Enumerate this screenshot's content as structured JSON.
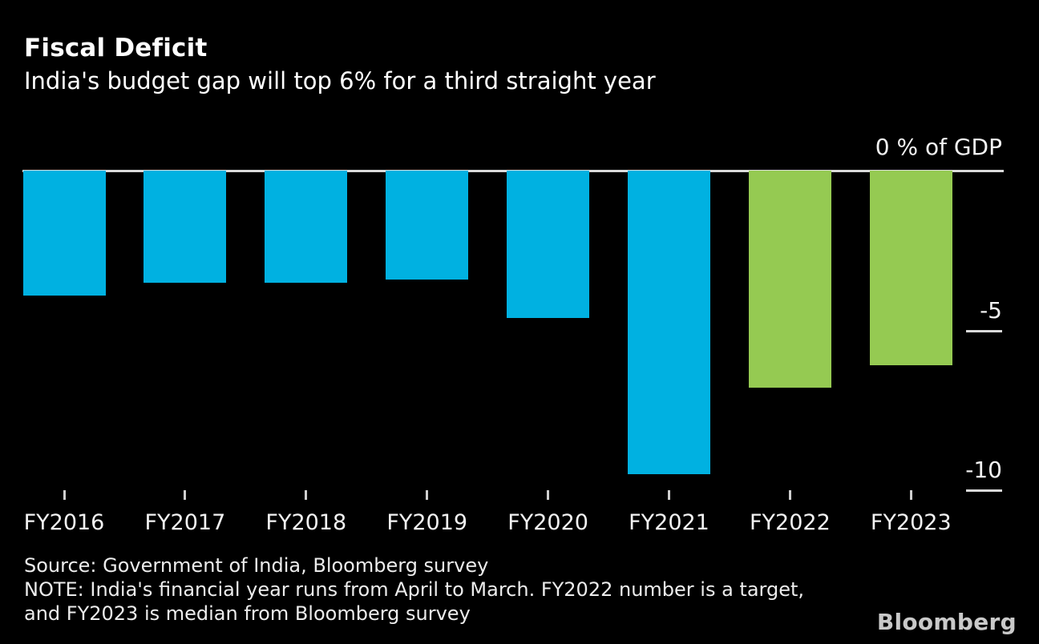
{
  "header": {
    "title": "Fiscal Deficit",
    "subtitle": "India's budget gap will top 6% for a third straight year"
  },
  "chart_data": {
    "type": "bar",
    "title": "Fiscal Deficit",
    "subtitle": "India's budget gap will top 6% for a third straight year",
    "categories": [
      "FY2016",
      "FY2017",
      "FY2018",
      "FY2019",
      "FY2020",
      "FY2021",
      "FY2022",
      "FY2023"
    ],
    "values": [
      -3.9,
      -3.5,
      -3.5,
      -3.4,
      -4.6,
      -9.5,
      -6.8,
      -6.1
    ],
    "bar_colors": [
      "#00b1e1",
      "#00b1e1",
      "#00b1e1",
      "#00b1e1",
      "#00b1e1",
      "#00b1e1",
      "#95ca52",
      "#95ca52"
    ],
    "unit_label": "0 % of GDP",
    "yticks": [
      {
        "label": "-5",
        "value": -5
      },
      {
        "label": "-10",
        "value": -10
      }
    ],
    "ylim": [
      -10.5,
      0
    ],
    "baseline_value": 0,
    "grid": "off",
    "legend": "none"
  },
  "colors": {
    "background": "#000000",
    "bar_actual": "#00b1e1",
    "bar_forecast": "#95ca52",
    "axis_line": "#d9d9d9",
    "text": "#ffffff"
  },
  "footer": {
    "source": "Source: Government of India, Bloomberg survey",
    "note_line_1": "NOTE: India's financial year runs from April to March. FY2022 number is a target,",
    "note_line_2": "and FY2023 is median from Bloomberg survey",
    "brand": "Bloomberg"
  }
}
